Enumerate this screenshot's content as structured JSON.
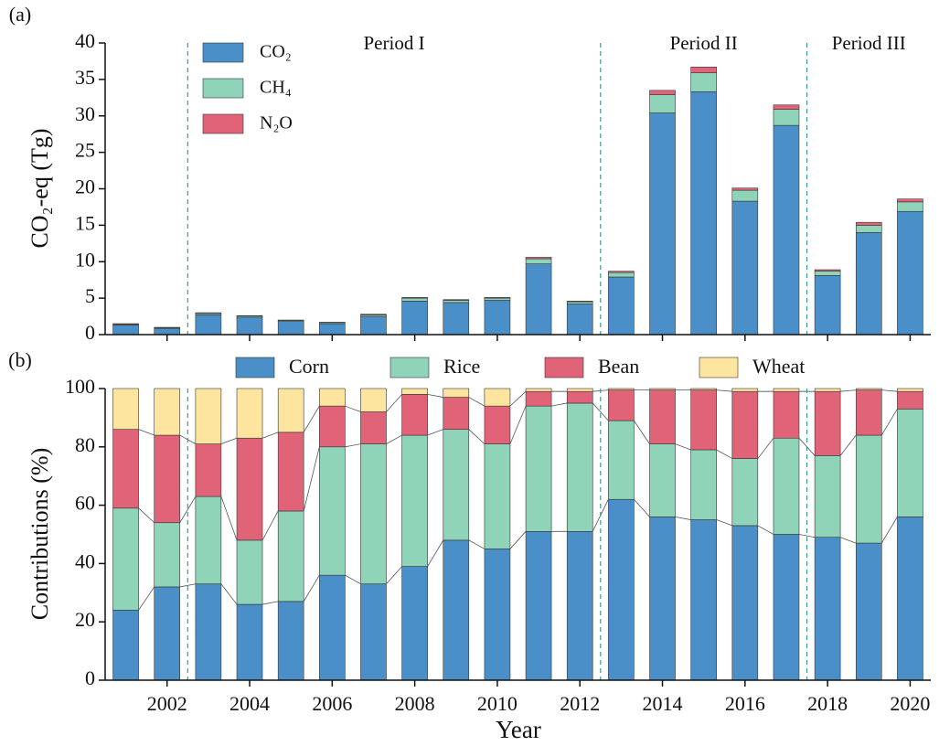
{
  "chart_data": [
    {
      "type": "bar",
      "stacked": true,
      "panel_label": "(a)",
      "ylabel": "CO₂-eq (Tg)",
      "x": [
        2001,
        2002,
        2003,
        2004,
        2005,
        2006,
        2007,
        2008,
        2009,
        2010,
        2011,
        2012,
        2013,
        2014,
        2015,
        2016,
        2017,
        2018,
        2019,
        2020
      ],
      "series": [
        {
          "name": "CO₂",
          "color": "#4a8fc7",
          "values": [
            1.3,
            0.85,
            2.7,
            2.4,
            1.8,
            1.5,
            2.5,
            4.6,
            4.4,
            4.7,
            9.7,
            4.2,
            7.9,
            30.4,
            33.3,
            18.3,
            28.7,
            8.1,
            14.0,
            16.9
          ]
        },
        {
          "name": "CH₄",
          "color": "#8fd3b8",
          "values": [
            0.1,
            0.1,
            0.2,
            0.15,
            0.15,
            0.15,
            0.2,
            0.4,
            0.3,
            0.3,
            0.7,
            0.3,
            0.6,
            2.5,
            2.6,
            1.5,
            2.2,
            0.6,
            1.0,
            1.3
          ]
        },
        {
          "name": "N₂O",
          "color": "#e06377",
          "values": [
            0.1,
            0.05,
            0.1,
            0.05,
            0.05,
            0.05,
            0.1,
            0.1,
            0.1,
            0.1,
            0.2,
            0.1,
            0.2,
            0.6,
            0.8,
            0.3,
            0.6,
            0.2,
            0.4,
            0.4
          ]
        }
      ],
      "xlim": [
        2000.5,
        2020.5
      ],
      "ylim": [
        0,
        40
      ],
      "yticks": [
        0,
        5,
        10,
        15,
        20,
        25,
        30,
        35,
        40
      ],
      "legend": "upper left",
      "periods": [
        {
          "label": "Period I",
          "from": 2002.5,
          "to": 2012.5
        },
        {
          "label": "Period II",
          "from": 2012.5,
          "to": 2017.5
        },
        {
          "label": "Period III",
          "from": 2017.5,
          "to": 2020.5
        }
      ]
    },
    {
      "type": "bar",
      "stacked": true,
      "panel_label": "(b)",
      "ylabel": "Contributions (%)",
      "xlabel": "Year",
      "x": [
        2001,
        2002,
        2003,
        2004,
        2005,
        2006,
        2007,
        2008,
        2009,
        2010,
        2011,
        2012,
        2013,
        2014,
        2015,
        2016,
        2017,
        2018,
        2019,
        2020
      ],
      "series": [
        {
          "name": "Corn",
          "color": "#4a8fc7",
          "values": [
            24,
            32,
            33,
            26,
            27,
            36,
            33,
            39,
            48,
            45,
            51,
            51,
            62,
            56,
            55,
            53,
            50,
            49,
            47,
            56
          ]
        },
        {
          "name": "Rice",
          "color": "#8fd3b8",
          "values": [
            35,
            22,
            30,
            22,
            31,
            44,
            48,
            45,
            38,
            36,
            43,
            44,
            27,
            25,
            24,
            23,
            33,
            28,
            37,
            37
          ]
        },
        {
          "name": "Bean",
          "color": "#e06377",
          "values": [
            27,
            30,
            18,
            35,
            27,
            14,
            11,
            14,
            11,
            13,
            5,
            4,
            10.5,
            18.5,
            20.5,
            23,
            16,
            22,
            15.5,
            6
          ]
        },
        {
          "name": "Wheat",
          "color": "#fde5a0",
          "values": [
            14,
            16,
            19,
            17,
            15,
            6,
            8,
            2,
            3,
            6,
            1,
            1,
            0.5,
            0.5,
            0.5,
            1,
            1,
            1,
            0.5,
            1
          ]
        }
      ],
      "xlim": [
        2000.5,
        2020.5
      ],
      "xticks": [
        2002,
        2004,
        2006,
        2008,
        2010,
        2012,
        2014,
        2016,
        2018,
        2020
      ],
      "ylim": [
        0,
        100
      ],
      "yticks": [
        0,
        20,
        40,
        60,
        80,
        100
      ],
      "legend": "top",
      "connectors": true
    }
  ]
}
